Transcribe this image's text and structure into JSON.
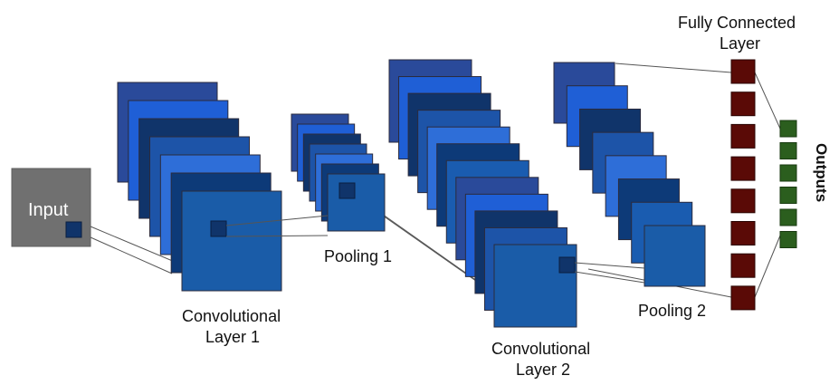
{
  "labels": {
    "input": "Input",
    "conv1_line1": "Convolutional",
    "conv1_line2": "Layer 1",
    "pool1": "Pooling 1",
    "conv2_line1": "Convolutional",
    "conv2_line2": "Layer 2",
    "pool2": "Pooling 2",
    "fc_line1": "Fully Connected",
    "fc_line2": "Layer",
    "outputs": "Outputs"
  },
  "colors": {
    "map_palette": [
      "#2a4a9a",
      "#1f5fd6",
      "#10346a",
      "#1d54a8",
      "#2e6ed8",
      "#0d3a78",
      "#1a5cb0"
    ],
    "input_box": "#707070",
    "fc_node": "#5a0a06",
    "output_node": "#2b5e1e",
    "connector": "#555555"
  },
  "structure": {
    "conv1_maps": 7,
    "pool1_maps": 7,
    "conv2_maps": 12,
    "pool2_maps": 8,
    "fc_nodes": 8,
    "output_nodes": 6
  }
}
